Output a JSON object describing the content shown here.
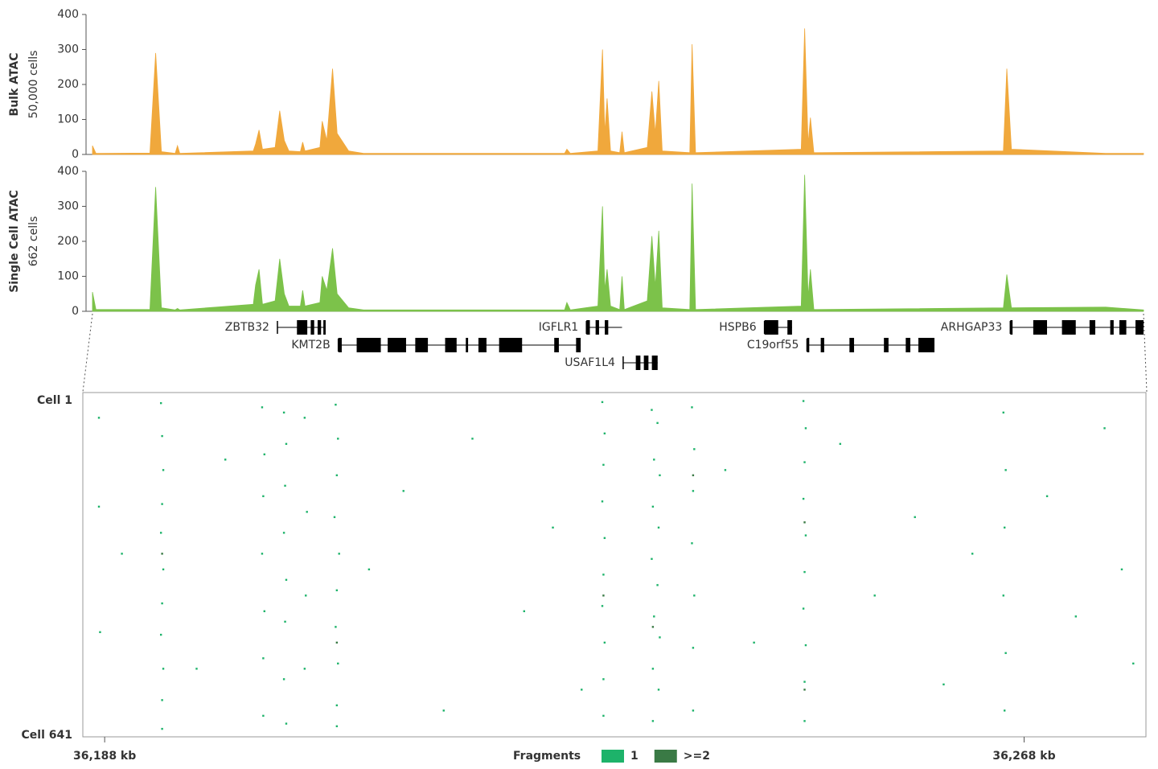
{
  "chart_data": [
    {
      "type": "area",
      "ylabel": "Bulk ATAC",
      "ylabel_sub": "50,000 cells",
      "color": "#f0a83c",
      "x": [
        36186.9,
        36187.2,
        36191.9,
        36192.4,
        36192.9,
        36194.1,
        36194.3,
        36194.5,
        36200.9,
        36201.1,
        36201.4,
        36201.7,
        36202.8,
        36203.2,
        36203.6,
        36204.0,
        36205.0,
        36205.2,
        36205.4,
        36206.7,
        36206.9,
        36207.3,
        36207.8,
        36208.2,
        36209.2,
        36210.5,
        36228.0,
        36228.2,
        36228.5,
        36230.9,
        36231.3,
        36231.5,
        36231.7,
        36232.0,
        36232.8,
        36233.0,
        36233.2,
        36235.2,
        36235.6,
        36235.9,
        36236.2,
        36236.5,
        36238.9,
        36239.1,
        36239.4,
        36248.6,
        36248.9,
        36249.2,
        36249.4,
        36249.7,
        36266.2,
        36266.5,
        36266.9,
        36275.1,
        36278.4
      ],
      "values": [
        25,
        3,
        4,
        290,
        8,
        3,
        25,
        3,
        10,
        30,
        70,
        15,
        20,
        125,
        40,
        10,
        8,
        35,
        10,
        20,
        95,
        40,
        245,
        60,
        10,
        3,
        3,
        15,
        3,
        10,
        300,
        60,
        160,
        10,
        5,
        65,
        5,
        20,
        180,
        60,
        210,
        10,
        5,
        315,
        5,
        15,
        360,
        30,
        105,
        5,
        10,
        245,
        15,
        3,
        3
      ],
      "xlim": [
        36186.9,
        36278.4
      ],
      "ylim": [
        0,
        400
      ],
      "yticks": [
        0,
        100,
        200,
        300,
        400
      ]
    },
    {
      "type": "area",
      "ylabel": "Single Cell ATAC",
      "ylabel_sub": "662 cells",
      "color": "#7cc24a",
      "x": [
        36186.9,
        36187.2,
        36191.9,
        36192.4,
        36192.9,
        36194.1,
        36194.3,
        36194.5,
        36200.9,
        36201.1,
        36201.4,
        36201.7,
        36202.8,
        36203.2,
        36203.6,
        36204.0,
        36205.0,
        36205.2,
        36205.4,
        36206.7,
        36206.9,
        36207.3,
        36207.8,
        36208.2,
        36209.2,
        36210.5,
        36228.0,
        36228.2,
        36228.5,
        36230.9,
        36231.3,
        36231.5,
        36231.7,
        36232.0,
        36232.8,
        36233.0,
        36233.2,
        36235.2,
        36235.6,
        36235.9,
        36236.2,
        36236.5,
        36238.9,
        36239.1,
        36239.4,
        36248.6,
        36248.9,
        36249.2,
        36249.4,
        36249.7,
        36266.2,
        36266.5,
        36266.9,
        36275.1,
        36278.4
      ],
      "values": [
        55,
        5,
        5,
        355,
        10,
        4,
        8,
        4,
        20,
        75,
        120,
        20,
        30,
        150,
        50,
        15,
        15,
        60,
        15,
        25,
        100,
        60,
        180,
        50,
        10,
        4,
        4,
        25,
        4,
        15,
        300,
        60,
        120,
        15,
        5,
        100,
        5,
        30,
        215,
        70,
        230,
        10,
        5,
        365,
        5,
        15,
        390,
        40,
        120,
        5,
        10,
        105,
        10,
        12,
        4
      ],
      "xlim": [
        36186.9,
        36278.4
      ],
      "ylim": [
        0,
        400
      ],
      "yticks": [
        0,
        100,
        200,
        300,
        400
      ]
    },
    {
      "type": "genes",
      "xlim": [
        36186.9,
        36278.4
      ],
      "genes": [
        {
          "name": "ZBTB32",
          "start": 36203.0,
          "end": 36207.2,
          "exons": [
            [
              36204.7,
              36205.6
            ],
            [
              36205.9,
              36206.2
            ],
            [
              36206.5,
              36206.8
            ],
            [
              36207.0,
              36207.2
            ]
          ]
        },
        {
          "name": "KMT2B",
          "start": 36208.3,
          "end": 36229.4,
          "exons": [
            [
              36208.3,
              36208.6
            ],
            [
              36209.9,
              36212.0
            ],
            [
              36212.6,
              36214.2
            ],
            [
              36215.0,
              36216.1
            ],
            [
              36217.6,
              36218.6
            ],
            [
              36219.4,
              36219.6
            ],
            [
              36220.5,
              36221.2
            ],
            [
              36222.3,
              36224.3
            ],
            [
              36227.1,
              36227.5
            ],
            [
              36229.0,
              36229.4
            ]
          ]
        },
        {
          "name": "IGFLR1",
          "start": 36229.9,
          "end": 36233.0,
          "exons": [
            [
              36229.9,
              36230.2
            ],
            [
              36230.7,
              36231.0
            ],
            [
              36231.5,
              36231.8
            ]
          ]
        },
        {
          "name": "USAF1L4",
          "start": 36233.1,
          "end": 36236.1,
          "exons": [
            [
              36234.2,
              36234.6
            ],
            [
              36234.9,
              36235.3
            ],
            [
              36235.6,
              36236.1
            ]
          ]
        },
        {
          "name": "HSPB6",
          "start": 36245.4,
          "end": 36247.8,
          "exons": [
            [
              36245.4,
              36246.6
            ],
            [
              36247.4,
              36247.8
            ]
          ]
        },
        {
          "name": "C19orf55",
          "start": 36249.1,
          "end": 36260.2,
          "exons": [
            [
              36249.1,
              36249.3
            ],
            [
              36250.3,
              36250.6
            ],
            [
              36252.8,
              36253.2
            ],
            [
              36255.8,
              36256.2
            ],
            [
              36257.7,
              36258.1
            ],
            [
              36258.8,
              36260.2
            ]
          ]
        },
        {
          "name": "ARHGAP33",
          "start": 36266.8,
          "end": 36278.4,
          "exons": [
            [
              36266.8,
              36267.0
            ],
            [
              36268.8,
              36270.0
            ],
            [
              36271.3,
              36272.5
            ],
            [
              36273.7,
              36274.2
            ],
            [
              36275.5,
              36275.8
            ],
            [
              36276.3,
              36276.9
            ],
            [
              36277.7,
              36278.4
            ]
          ]
        }
      ]
    },
    {
      "type": "scatter",
      "legend_title": "Fragments",
      "xlim": [
        36186.1,
        36278.6
      ],
      "xticks": [
        {
          "value": 36188,
          "label": "36,188 kb"
        },
        {
          "value": 36268,
          "label": "36,268 kb"
        }
      ],
      "ylim": [
        1,
        641
      ],
      "yticks": [
        {
          "value": 1,
          "label": "Cell 1"
        },
        {
          "value": 641,
          "label": "Cell 641"
        }
      ],
      "series": [
        {
          "name": "1",
          "color": "#1db36a",
          "x": [
            36192.9,
            36193.0,
            36193.1,
            36193.0,
            36192.9,
            36193.1,
            36193.0,
            36192.9,
            36193.1,
            36193.0,
            36193.0,
            36201.7,
            36201.9,
            36201.8,
            36201.7,
            36201.9,
            36201.8,
            36201.8,
            36203.6,
            36203.8,
            36203.7,
            36203.6,
            36203.8,
            36203.7,
            36203.6,
            36203.8,
            36205.4,
            36205.6,
            36205.5,
            36205.4,
            36208.1,
            36208.3,
            36208.2,
            36208.0,
            36208.4,
            36208.2,
            36208.1,
            36208.3,
            36208.2,
            36208.2,
            36231.3,
            36231.5,
            36231.4,
            36231.3,
            36231.5,
            36231.4,
            36231.3,
            36231.5,
            36231.4,
            36231.4,
            36235.6,
            36235.8,
            36235.7,
            36235.6,
            36235.8,
            36235.7,
            36235.7,
            36236.1,
            36236.3,
            36236.2,
            36236.1,
            36236.3,
            36236.2,
            36239.1,
            36239.3,
            36239.2,
            36239.1,
            36239.3,
            36239.2,
            36239.2,
            36248.8,
            36249.0,
            36248.9,
            36248.8,
            36249.0,
            36248.9,
            36248.8,
            36249.0,
            36248.9,
            36248.9,
            36266.2,
            36266.4,
            36266.3,
            36266.2,
            36266.4,
            36266.3,
            36187.5,
            36187.5,
            36187.6,
            36189.5,
            36196.0,
            36198.5,
            36211.0,
            36214.0,
            36217.5,
            36220.0,
            36224.5,
            36227.0,
            36229.5,
            36242.0,
            36244.5,
            36252.0,
            36255.0,
            36258.5,
            36261.0,
            36263.5,
            36270.0,
            36272.5,
            36275.0,
            36276.5,
            36277.5
          ],
          "y": [
            12,
            75,
            140,
            205,
            260,
            330,
            395,
            455,
            520,
            580,
            635,
            20,
            110,
            190,
            300,
            410,
            500,
            610,
            30,
            90,
            170,
            260,
            350,
            430,
            540,
            625,
            40,
            220,
            380,
            520,
            15,
            80,
            150,
            230,
            300,
            370,
            440,
            510,
            590,
            630,
            10,
            70,
            130,
            200,
            270,
            340,
            400,
            470,
            540,
            610,
            25,
            120,
            210,
            310,
            420,
            520,
            620,
            50,
            150,
            250,
            360,
            460,
            560,
            20,
            100,
            180,
            280,
            380,
            480,
            600,
            8,
            60,
            125,
            195,
            265,
            335,
            405,
            475,
            545,
            620,
            30,
            140,
            250,
            380,
            490,
            600,
            40,
            210,
            450,
            300,
            520,
            120,
            330,
            180,
            600,
            80,
            410,
            250,
            560,
            140,
            470,
            90,
            380,
            230,
            550,
            300,
            190,
            420,
            60,
            330,
            510
          ]
        },
        {
          "name": ">=2",
          "color": "#3a7a45",
          "x": [
            36193.0,
            36231.4,
            36235.7,
            36248.9,
            36248.9,
            36239.2,
            36208.2
          ],
          "y": [
            300,
            380,
            440,
            240,
            560,
            150,
            470
          ]
        }
      ]
    }
  ]
}
